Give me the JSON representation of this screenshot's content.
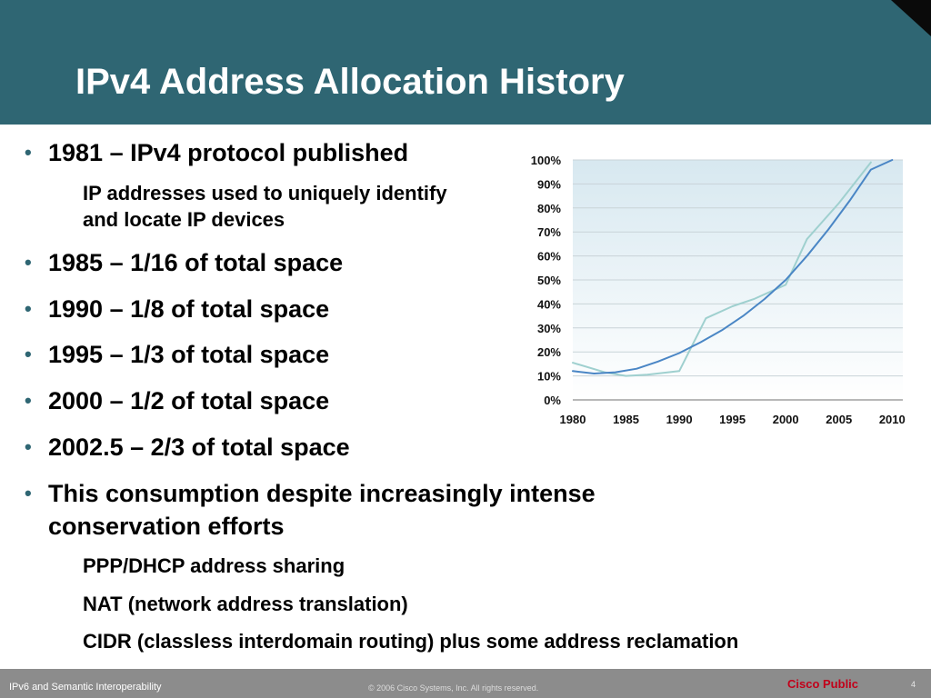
{
  "header": {
    "title": "IPv4 Address Allocation History"
  },
  "bullets": [
    {
      "text": "1981 – IPv4 protocol published"
    },
    {
      "text": "IP addresses used to uniquely identify"
    },
    {
      "text": "and locate IP devices"
    },
    {
      "text": "1985 – 1/16 of total space"
    },
    {
      "text": "1990 – 1/8 of total space"
    },
    {
      "text": "1995 – 1/3 of total space"
    },
    {
      "text": "2000 – 1/2 of total space"
    },
    {
      "text": "2002.5 – 2/3 of total space"
    },
    {
      "text": "This consumption despite increasingly intense"
    },
    {
      "text": "conservation efforts"
    },
    {
      "text": "PPP/DHCP address sharing"
    },
    {
      "text": "NAT (network address translation)"
    },
    {
      "text": "CIDR (classless interdomain routing) plus some address reclamation"
    }
  ],
  "bullet_symbol": "•",
  "footer": {
    "left": "IPv6 and Semantic Interoperability",
    "center": "© 2006 Cisco Systems, Inc. All rights reserved.",
    "brand": "Cisco Public",
    "page": "4"
  },
  "colors": {
    "header_bg": "#2f6673",
    "series_trend": "#4a86c5",
    "series_actual": "#9fd0cf",
    "plot_bg_top": "#d7e8f0",
    "brand_red": "#c2001a"
  },
  "chart_data": {
    "type": "line",
    "title": "",
    "xlabel": "",
    "ylabel": "",
    "x_ticks": [
      "1980",
      "1985",
      "1990",
      "1995",
      "2000",
      "2005",
      "2010"
    ],
    "y_ticks": [
      "0%",
      "10%",
      "20%",
      "30%",
      "40%",
      "50%",
      "60%",
      "70%",
      "80%",
      "90%",
      "100%"
    ],
    "xlim": [
      1980,
      2011
    ],
    "ylim": [
      0,
      100
    ],
    "grid": true,
    "series": [
      {
        "color": "#9fd0cf",
        "x": [
          1980,
          1983,
          1985,
          1987,
          1990,
          1992.5,
          1995,
          1997,
          2000,
          2002,
          2005,
          2008
        ],
        "y": [
          15.5,
          11.5,
          10,
          10.5,
          12,
          34,
          39,
          42,
          48,
          67,
          82,
          99
        ]
      },
      {
        "color": "#4a86c5",
        "x": [
          1980,
          1982,
          1984,
          1986,
          1988,
          1990,
          1992,
          1994,
          1996,
          1998,
          2000,
          2002,
          2004,
          2006,
          2008,
          2010
        ],
        "y": [
          12,
          11,
          11.5,
          13,
          16,
          19.5,
          24,
          29,
          35,
          42,
          50,
          60,
          71,
          83,
          96,
          100
        ]
      }
    ]
  }
}
